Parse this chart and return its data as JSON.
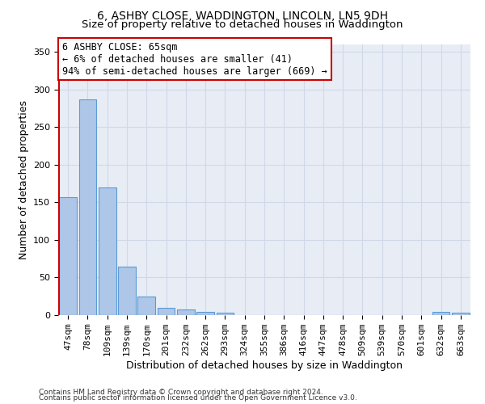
{
  "title": "6, ASHBY CLOSE, WADDINGTON, LINCOLN, LN5 9DH",
  "subtitle": "Size of property relative to detached houses in Waddington",
  "xlabel": "Distribution of detached houses by size in Waddington",
  "ylabel": "Number of detached properties",
  "categories": [
    "47sqm",
    "78sqm",
    "109sqm",
    "139sqm",
    "170sqm",
    "201sqm",
    "232sqm",
    "262sqm",
    "293sqm",
    "324sqm",
    "355sqm",
    "386sqm",
    "416sqm",
    "447sqm",
    "478sqm",
    "509sqm",
    "539sqm",
    "570sqm",
    "601sqm",
    "632sqm",
    "663sqm"
  ],
  "values": [
    157,
    287,
    170,
    65,
    25,
    10,
    7,
    4,
    3,
    0,
    0,
    0,
    0,
    0,
    0,
    0,
    0,
    0,
    0,
    4,
    3
  ],
  "bar_color": "#aec6e8",
  "bar_edge_color": "#5b9bd5",
  "highlight_color": "#cc0000",
  "annotation_line1": "6 ASHBY CLOSE: 65sqm",
  "annotation_line2": "← 6% of detached houses are smaller (41)",
  "annotation_line3": "94% of semi-detached houses are larger (669) →",
  "annotation_box_color": "#ffffff",
  "annotation_box_edge_color": "#cc0000",
  "ylim": [
    0,
    360
  ],
  "yticks": [
    0,
    50,
    100,
    150,
    200,
    250,
    300,
    350
  ],
  "grid_color": "#d0d8e8",
  "background_color": "#e8edf5",
  "footer1": "Contains HM Land Registry data © Crown copyright and database right 2024.",
  "footer2": "Contains public sector information licensed under the Open Government Licence v3.0.",
  "title_fontsize": 10,
  "subtitle_fontsize": 9.5,
  "xlabel_fontsize": 9,
  "ylabel_fontsize": 9,
  "annotation_fontsize": 8.5,
  "tick_fontsize": 8,
  "footer_fontsize": 6.5
}
